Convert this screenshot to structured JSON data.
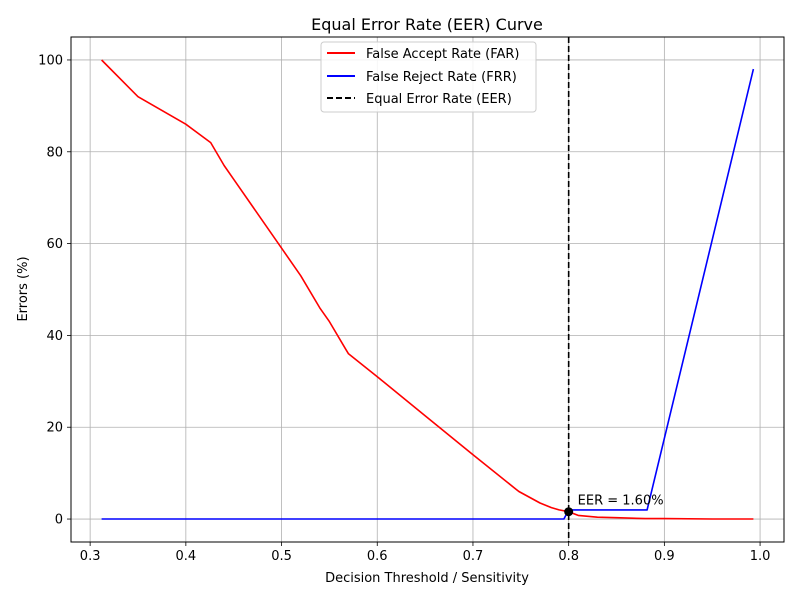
{
  "chart_data": {
    "type": "line",
    "title": "Equal Error Rate (EER) Curve",
    "xlabel": "Decision Threshold / Sensitivity",
    "ylabel": "Errors (%)",
    "xlim": [
      0.28,
      1.025
    ],
    "ylim": [
      -5,
      105
    ],
    "xticks": [
      0.3,
      0.4,
      0.5,
      0.6,
      0.7,
      0.8,
      0.9,
      1.0
    ],
    "xtick_labels": [
      "0.3",
      "0.4",
      "0.5",
      "0.6",
      "0.7",
      "0.8",
      "0.9",
      "1.0"
    ],
    "yticks": [
      0,
      20,
      40,
      60,
      80,
      100
    ],
    "ytick_labels": [
      "0",
      "20",
      "40",
      "60",
      "80",
      "100"
    ],
    "grid": true,
    "legend_position": "top-center",
    "series": [
      {
        "name": "False Accept Rate (FAR)",
        "color": "#ff0000",
        "style": "solid",
        "x": [
          0.312,
          0.35,
          0.4,
          0.426,
          0.44,
          0.45,
          0.5,
          0.52,
          0.54,
          0.55,
          0.567,
          0.57,
          0.6,
          0.65,
          0.7,
          0.745,
          0.748,
          0.77,
          0.782,
          0.79,
          0.8,
          0.81,
          0.83,
          0.85,
          0.88,
          0.9,
          0.95,
          0.993
        ],
        "y": [
          100,
          92,
          86,
          82,
          77,
          74,
          59,
          53,
          46,
          43,
          37,
          36,
          31,
          22.5,
          14,
          6.5,
          6,
          3.5,
          2.5,
          2,
          1.6,
          0.8,
          0.4,
          0.3,
          0.1,
          0.1,
          0,
          0
        ]
      },
      {
        "name": "False Reject Rate (FRR)",
        "color": "#0000ff",
        "style": "solid",
        "x": [
          0.312,
          0.5,
          0.7,
          0.795,
          0.8,
          0.85,
          0.882,
          0.993
        ],
        "y": [
          0,
          0,
          0,
          0,
          2,
          2,
          2,
          98
        ]
      }
    ],
    "eer": {
      "name": "Equal Error Rate (EER)",
      "color": "#000000",
      "style": "dashed",
      "threshold": 0.8,
      "value": 1.6,
      "annotation": "EER = 1.60%"
    }
  }
}
